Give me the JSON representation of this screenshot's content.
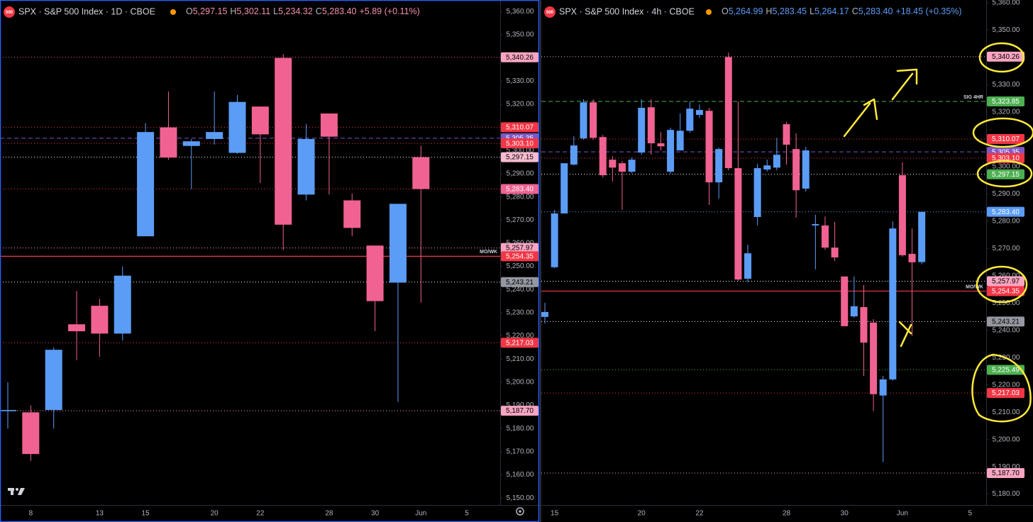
{
  "chart_data": [
    {
      "type": "candlestick",
      "symbol_badge": "500",
      "title": "SPX · S&P 500 Index · 1D · CBOE",
      "ohlc_labels": [
        {
          "key": "O",
          "value": "5,297.15"
        },
        {
          "key": "H",
          "value": "5,302.11"
        },
        {
          "key": "L",
          "value": "5,234.32"
        },
        {
          "key": "C",
          "value": "5,283.40"
        }
      ],
      "change": "+5.89 (+0.11%)",
      "header_color": "#f48fb1",
      "categories": [
        null,
        "8",
        null,
        null,
        "13",
        null,
        "15",
        null,
        null,
        "20",
        null,
        "22",
        null,
        null,
        "28",
        null,
        "30",
        null,
        "Jun",
        null,
        "5"
      ],
      "open": [
        5187.5,
        5187,
        5188,
        5225,
        5233,
        5221,
        5263,
        5310,
        5302,
        5305,
        5299,
        5319,
        5340,
        5281,
        5316,
        5278.5,
        5259,
        5243,
        5297.15,
        null,
        null
      ],
      "high": [
        5200,
        5190,
        5215,
        5239.4,
        5236,
        5250,
        5311.8,
        5325.5,
        5305,
        5325.5,
        5324,
        5319,
        5341.7,
        5311.5,
        5316,
        5281.5,
        5259,
        5277,
        5302.11,
        null,
        null
      ],
      "low": [
        5180,
        5166,
        5180,
        5209.5,
        5211,
        5218,
        5263,
        5296,
        5283.4,
        5302.6,
        5298.6,
        5286,
        5257,
        5278.5,
        5281,
        5263,
        5222,
        5191.5,
        5234.32,
        null,
        null
      ],
      "close": [
        5188,
        5169,
        5214,
        5222,
        5221,
        5246,
        5308,
        5297,
        5304,
        5308,
        5321,
        5307,
        5268,
        5305,
        5306,
        5266.6,
        5235,
        5277,
        5283.4,
        null,
        null
      ],
      "up_color": "#5b9cf6",
      "down_color": "#f06292",
      "grid": false,
      "ylim": [
        5147,
        5365
      ],
      "yticks": [
        {
          "value": 5150,
          "label": "5,150.00"
        },
        {
          "value": 5160,
          "label": "5,160.00"
        },
        {
          "value": 5170,
          "label": "5,170.00"
        },
        {
          "value": 5180,
          "label": "5,180.00"
        },
        {
          "value": 5190,
          "label": "5,190.00"
        },
        {
          "value": 5200,
          "label": "5,200.00"
        },
        {
          "value": 5210,
          "label": "5,210.00"
        },
        {
          "value": 5220,
          "label": "5,220.00"
        },
        {
          "value": 5230,
          "label": "5,230.00"
        },
        {
          "value": 5240,
          "label": "5,240.00"
        },
        {
          "value": 5250,
          "label": "5,250.00"
        },
        {
          "value": 5260,
          "label": "5,260.00"
        },
        {
          "value": 5270,
          "label": "5,270.00"
        },
        {
          "value": 5280,
          "label": "5,280.00"
        },
        {
          "value": 5290,
          "label": "5,290.00"
        },
        {
          "value": 5300,
          "label": "5,300.00"
        },
        {
          "value": 5310,
          "label": "5,310.00"
        },
        {
          "value": 5320,
          "label": "5,320.00"
        },
        {
          "value": 5330,
          "label": "5,330.00"
        },
        {
          "value": 5340,
          "label": "5,340.00"
        },
        {
          "value": 5350,
          "label": "5,350.00"
        },
        {
          "value": 5360,
          "label": "5,360.00"
        }
      ],
      "levels": [
        {
          "value": 5340.26,
          "label": "5,340.26",
          "color": "#f8a5c2",
          "text_color": "#000000",
          "line_color": "#f06292",
          "style": "dotted"
        },
        {
          "value": 5310.07,
          "label": "5,310.07",
          "color": "#f23645",
          "line_color": "#f23645",
          "style": "dotted"
        },
        {
          "value": 5305.35,
          "label": "5,305.35",
          "color": "#7e57c2",
          "line_color": "#7e57c2",
          "style": "dashed"
        },
        {
          "value": 5303.1,
          "label": "5,303.10",
          "color": "#f23645",
          "line_color": "#f23645",
          "style": "dotted"
        },
        {
          "value": 5297.15,
          "label": "5,297.15",
          "color": "#f8bbd0",
          "text_color": "#000000",
          "line_color": "#ffffff",
          "style": "dotted"
        },
        {
          "value": 5283.4,
          "label": "5,283.40",
          "color": "#f06292",
          "line_color": "#f23645",
          "style": "dotted"
        },
        {
          "value": 5257.97,
          "label": "5,257.97",
          "color": "#f8a5c2",
          "text_color": "#000000",
          "line_color": "#f8a5c2",
          "style": "dotted"
        },
        {
          "value": 5254.35,
          "label": "5,254.35",
          "color": "#f23645",
          "line_color": "#f23645",
          "style": "solid",
          "note": "MO/WK"
        },
        {
          "value": 5243.21,
          "label": "5,243.21",
          "color": "#9598a1",
          "text_color": "#000000",
          "line_color": "#ffffff",
          "style": "dotted"
        },
        {
          "value": 5217.03,
          "label": "5,217.03",
          "color": "#f23645",
          "line_color": "#f23645",
          "style": "dotted"
        },
        {
          "value": 5187.7,
          "label": "5,187.70",
          "color": "#f8a5c2",
          "text_color": "#000000",
          "line_color": "#f8a5c2",
          "style": "dotted"
        }
      ]
    },
    {
      "type": "candlestick",
      "symbol_badge": "500",
      "title": "SPX · S&P 500 Index · 4h · CBOE",
      "ohlc_labels": [
        {
          "key": "O",
          "value": "5,264.99"
        },
        {
          "key": "H",
          "value": "5,283.45"
        },
        {
          "key": "L",
          "value": "5,264.17"
        },
        {
          "key": "C",
          "value": "5,283.40"
        }
      ],
      "change": "+18.45 (+0.35%)",
      "header_color": "#5b9cf6",
      "categories": [
        null,
        "15",
        null,
        null,
        null,
        null,
        null,
        null,
        null,
        null,
        "20",
        null,
        null,
        null,
        null,
        null,
        "22",
        null,
        null,
        null,
        null,
        null,
        null,
        null,
        null,
        "28",
        null,
        null,
        null,
        null,
        null,
        "30",
        null,
        null,
        null,
        null,
        null,
        "Jun",
        null,
        null,
        null,
        null,
        null,
        null,
        "5"
      ],
      "open": [
        5244.9,
        5263.1,
        5282.8,
        5300.7,
        5310.3,
        5323.5,
        5310.8,
        5302.5,
        5301.2,
        5298.1,
        5305.1,
        5321.7,
        5308.5,
        5298.1,
        5305.9,
        5313.1,
        5318.9,
        5320.4,
        5294.2,
        5340.1,
        5299.4,
        5258.9,
        5281.5,
        5298.9,
        5299.6,
        5315.5,
        5306.4,
        5291.9,
        5278.4,
        5278.4,
        5270.3,
        5259.7,
        5245.1,
        5248.5,
        5242.8,
        5216.1,
        5222,
        5296.8,
        5268,
        5264.99,
        null,
        null,
        null,
        null,
        null
      ],
      "high": [
        5250.1,
        5284.1,
        5301.2,
        5311.1,
        5324.6,
        5324.6,
        5311.6,
        5303.8,
        5302,
        5303.3,
        5324.6,
        5324.6,
        5312.6,
        5314.2,
        5319.4,
        5323.8,
        5322.7,
        5321.5,
        5306.9,
        5341.7,
        5323.8,
        5271.4,
        5301,
        5302.5,
        5310.5,
        5316.3,
        5312.1,
        5307.2,
        5282.3,
        5281.7,
        5279.7,
        5259.7,
        5259.7,
        5256.6,
        5244.1,
        5223.3,
        5279.9,
        5301.5,
        5277.3,
        5283.45,
        null,
        null,
        null,
        null,
        null
      ],
      "low": [
        5242.5,
        5262.8,
        5282.8,
        5300.4,
        5309.8,
        5309.8,
        5296,
        5294.5,
        5284.1,
        5297.6,
        5304.3,
        5304.3,
        5305.9,
        5297.3,
        5305.9,
        5312.4,
        5317.8,
        5285.9,
        5288.2,
        5298.6,
        5258.1,
        5257.6,
        5278.4,
        5298.1,
        5298.6,
        5300.7,
        5281.2,
        5290.8,
        5262.3,
        5269.5,
        5265.4,
        5241.5,
        5244.6,
        5223.3,
        5210.4,
        5191.7,
        5221.5,
        5266.9,
        5237.9,
        5264.17,
        null,
        null,
        null,
        null,
        null
      ],
      "close": [
        5246.7,
        5282.8,
        5301.2,
        5307.7,
        5323.5,
        5310.5,
        5296.8,
        5299.6,
        5298.1,
        5302.5,
        5321.5,
        5308.5,
        5307.4,
        5313.4,
        5313.1,
        5321.2,
        5320.7,
        5294.2,
        5306.4,
        5299.4,
        5258.6,
        5268.2,
        5299.4,
        5300.4,
        5304.3,
        5308,
        5291.3,
        5305.9,
        5278.9,
        5270.3,
        5266.7,
        5241.5,
        5248.8,
        5235.5,
        5216.6,
        5222,
        5277.3,
        5267.5,
        5264.9,
        5283.4,
        null,
        null,
        null,
        null,
        null
      ],
      "up_color": "#5b9cf6",
      "down_color": "#f06292",
      "grid": false,
      "ylim": [
        5176,
        5361
      ],
      "yticks": [
        {
          "value": 5180,
          "label": "5,180.00"
        },
        {
          "value": 5190,
          "label": "5,190.00"
        },
        {
          "value": 5200,
          "label": "5,200.00"
        },
        {
          "value": 5210,
          "label": "5,210.00"
        },
        {
          "value": 5220,
          "label": "5,220.00"
        },
        {
          "value": 5230,
          "label": "5,230.00"
        },
        {
          "value": 5240,
          "label": "5,240.00"
        },
        {
          "value": 5250,
          "label": "5,250.00"
        },
        {
          "value": 5260,
          "label": "5,260.00"
        },
        {
          "value": 5270,
          "label": "5,270.00"
        },
        {
          "value": 5280,
          "label": "5,280.00"
        },
        {
          "value": 5290,
          "label": "5,290.00"
        },
        {
          "value": 5300,
          "label": "5,300.00"
        },
        {
          "value": 5310,
          "label": "5,310.00"
        },
        {
          "value": 5320,
          "label": "5,320.00"
        },
        {
          "value": 5330,
          "label": "5,330.00"
        },
        {
          "value": 5340,
          "label": "5,340.00"
        },
        {
          "value": 5350,
          "label": "5,350.00"
        },
        {
          "value": 5360,
          "label": "5,360.00"
        }
      ],
      "levels": [
        {
          "value": 5340.26,
          "label": "5,340.26",
          "color": "#f8a5c2",
          "text_color": "#000000",
          "line_color": "#f8a5c2",
          "style": "dotted"
        },
        {
          "value": 5323.85,
          "label": "5,323.85",
          "color": "#4caf50",
          "line_color": "#4caf50",
          "style": "dashed",
          "note": "SIG 4HR"
        },
        {
          "value": 5310.07,
          "label": "5,310.07",
          "color": "#f23645",
          "line_color": "#f23645",
          "style": "dotted"
        },
        {
          "value": 5305.35,
          "label": "5,305.35",
          "color": "#7e57c2",
          "line_color": "#7e57c2",
          "style": "dashed"
        },
        {
          "value": 5303.1,
          "label": "5,303.10",
          "color": "#f23645",
          "line_color": "#f23645",
          "style": "dotted"
        },
        {
          "value": 5297.15,
          "label": "5,297.15",
          "color": "#4caf50",
          "line_color": "#ffffff",
          "style": "dotted"
        },
        {
          "value": 5283.4,
          "label": "5,283.40",
          "color": "#5b9cf6",
          "line_color": "#5b9cf6",
          "style": "dotted"
        },
        {
          "value": 5257.97,
          "label": "5,257.97",
          "color": "#f8a5c2",
          "text_color": "#000000",
          "line_color": "#ffffff",
          "style": "dotted"
        },
        {
          "value": 5254.35,
          "label": "5,254.35",
          "color": "#f23645",
          "line_color": "#f23645",
          "style": "solid",
          "note": "MO/WK"
        },
        {
          "value": 5243.21,
          "label": "5,243.21",
          "color": "#9598a1",
          "text_color": "#000000",
          "line_color": "#ffffff",
          "style": "dotted"
        },
        {
          "value": 5225.49,
          "label": "5,225.49",
          "color": "#4caf50",
          "line_color": "#4caf50",
          "style": "dotted"
        },
        {
          "value": 5217.03,
          "label": "5,217.03",
          "color": "#f23645",
          "line_color": "#f23645",
          "style": "dotted"
        },
        {
          "value": 5187.7,
          "label": "5,187.70",
          "color": "#f8a5c2",
          "text_color": "#000000",
          "line_color": "#f8a5c2",
          "style": "dotted"
        }
      ]
    }
  ]
}
